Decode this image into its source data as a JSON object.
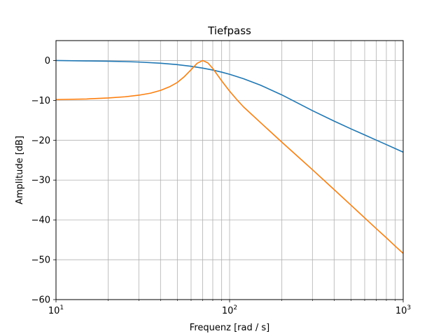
{
  "chart_data": {
    "type": "line",
    "title": "Tiefpass",
    "xlabel": "Frequenz [rad / s]",
    "ylabel": "Amplitude [dB]",
    "xscale": "log",
    "xlim": [
      10,
      1000
    ],
    "ylim": [
      -60,
      5
    ],
    "grid": true,
    "grid_x": "major-and-minor",
    "grid_y": "major",
    "x_ticks": [
      {
        "value": 10,
        "base": "10",
        "exp": "1"
      },
      {
        "value": 100,
        "base": "10",
        "exp": "2"
      },
      {
        "value": 1000,
        "base": "10",
        "exp": "3"
      }
    ],
    "y_ticks": [
      {
        "value": 0,
        "label": "0"
      },
      {
        "value": -10,
        "label": "−10"
      },
      {
        "value": -20,
        "label": "−20"
      },
      {
        "value": -30,
        "label": "−30"
      },
      {
        "value": -40,
        "label": "−40"
      },
      {
        "value": -50,
        "label": "−50"
      },
      {
        "value": -60,
        "label": "−60"
      }
    ],
    "series": [
      {
        "color": "#1f77b4",
        "x": [
          10,
          15,
          20,
          25,
          30,
          40,
          50,
          60,
          70,
          80,
          90,
          100,
          120,
          150,
          200,
          250,
          300,
          400,
          500,
          600,
          700,
          800,
          900,
          1000
        ],
        "y": [
          0.0,
          -0.1,
          -0.17,
          -0.27,
          -0.38,
          -0.67,
          -1.03,
          -1.44,
          -1.91,
          -2.39,
          -2.92,
          -3.45,
          -4.55,
          -6.15,
          -8.63,
          -10.8,
          -12.58,
          -15.2,
          -17.15,
          -18.68,
          -19.98,
          -21.1,
          -22.1,
          -23.0
        ],
        "note": ""
      },
      {
        "color": "#ff7f0e",
        "x": [
          10,
          15,
          20,
          25,
          30,
          35,
          40,
          45,
          50,
          55,
          60,
          65,
          70,
          75,
          80,
          85,
          90,
          100,
          110,
          120,
          150,
          200,
          250,
          300,
          400,
          500,
          600,
          700,
          800,
          900,
          1000
        ],
        "y": [
          -9.8,
          -9.65,
          -9.4,
          -9.1,
          -8.7,
          -8.2,
          -7.5,
          -6.6,
          -5.5,
          -4.0,
          -2.3,
          -0.7,
          0.0,
          -0.6,
          -2.0,
          -3.6,
          -5.1,
          -7.7,
          -9.8,
          -11.6,
          -15.5,
          -20.5,
          -24.3,
          -27.4,
          -32.4,
          -36.3,
          -39.5,
          -42.2,
          -44.5,
          -46.6,
          -48.4
        ]
      }
    ]
  }
}
